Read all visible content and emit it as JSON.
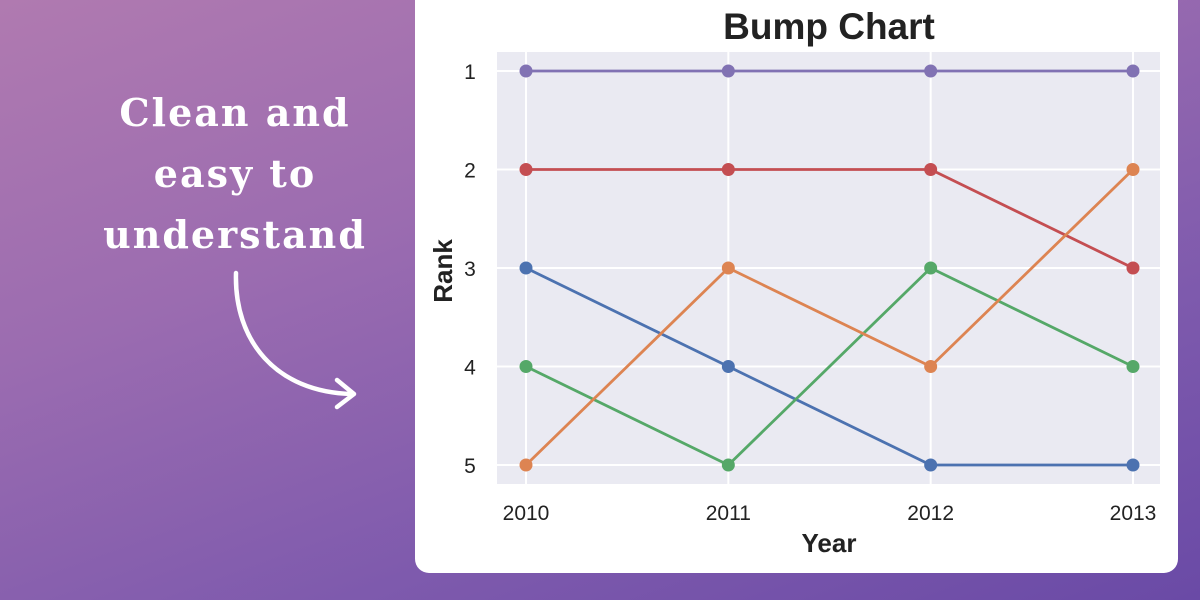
{
  "tagline": {
    "line1": "Clean and",
    "line2": "easy to",
    "line3": "understand"
  },
  "chart_data": {
    "type": "line",
    "title": "Bump Chart",
    "xlabel": "Year",
    "ylabel": "Rank",
    "x": [
      2010,
      2011,
      2012,
      2013
    ],
    "x_tick_labels": [
      "2010",
      "2011",
      "2012",
      "2013"
    ],
    "y_tick_labels": [
      "1",
      "2",
      "3",
      "4",
      "5"
    ],
    "ylim": [
      5,
      1
    ],
    "y_inverted": true,
    "grid": true,
    "legend": "none",
    "series": [
      {
        "values": [
          1,
          1,
          1,
          1
        ],
        "color": "#8172b3"
      },
      {
        "values": [
          2,
          2,
          2,
          3
        ],
        "color": "#c44e52"
      },
      {
        "values": [
          3,
          4,
          5,
          5
        ],
        "color": "#4c72b0"
      },
      {
        "values": [
          4,
          5,
          3,
          4
        ],
        "color": "#55a868"
      },
      {
        "values": [
          5,
          3,
          4,
          2
        ],
        "color": "#dd8452"
      }
    ],
    "colors": {
      "plot_background": "#eaeaf2",
      "grid": "#ffffff"
    }
  }
}
